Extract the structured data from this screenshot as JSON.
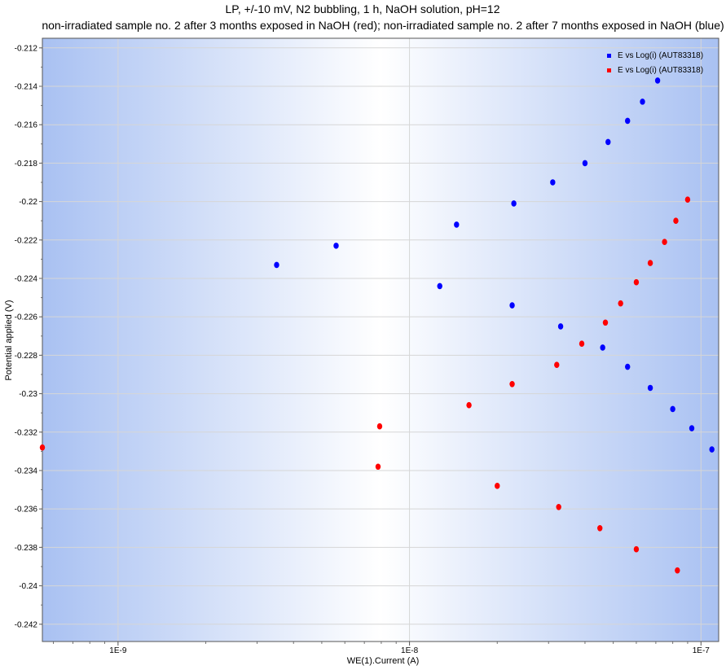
{
  "chart_data": {
    "type": "scatter",
    "title": "LP, +/-10 mV, N2 bubbling, 1 h, NaOH solution, pH=12",
    "subtitle": "non-irradiated sample no. 2 after 3 months exposed in NaOH (red); non-irradiated sample no. 2 after 7 months exposed in NaOH (blue)",
    "xlabel": "WE(1).Current (A)",
    "ylabel": "Potential applied (V)",
    "x_scale": "log",
    "xlim": [
      5.5e-10,
      1.15e-07
    ],
    "ylim": [
      -0.2429,
      -0.2115
    ],
    "x_ticks": [
      1e-09,
      1e-08,
      1e-07
    ],
    "x_tick_labels": [
      "1E-9",
      "1E-8",
      "1E-7"
    ],
    "y_ticks": [
      -0.212,
      -0.214,
      -0.216,
      -0.218,
      -0.22,
      -0.222,
      -0.224,
      -0.226,
      -0.228,
      -0.23,
      -0.232,
      -0.234,
      -0.236,
      -0.238,
      -0.24,
      -0.242
    ],
    "y_tick_labels": [
      "-0.212",
      "-0.214",
      "-0.216",
      "-0.218",
      "-0.22",
      "-0.222",
      "-0.224",
      "-0.226",
      "-0.228",
      "-0.23",
      "-0.232",
      "-0.234",
      "-0.236",
      "-0.238",
      "-0.24",
      "-0.242"
    ],
    "grid": true,
    "legend_position": "top-right",
    "series": [
      {
        "name": "E vs Log(i) (AUT83318)",
        "color": "#0000ff",
        "points": [
          [
            3.5e-09,
            -0.2233
          ],
          [
            5.6e-09,
            -0.2223
          ],
          [
            1.45e-08,
            -0.2212
          ],
          [
            2.28e-08,
            -0.2201
          ],
          [
            3.1e-08,
            -0.219
          ],
          [
            4e-08,
            -0.218
          ],
          [
            4.8e-08,
            -0.2169
          ],
          [
            5.6e-08,
            -0.2158
          ],
          [
            6.3e-08,
            -0.2148
          ],
          [
            7.1e-08,
            -0.2137
          ],
          [
            1.27e-08,
            -0.2244
          ],
          [
            2.25e-08,
            -0.2254
          ],
          [
            3.3e-08,
            -0.2265
          ],
          [
            4.6e-08,
            -0.2276
          ],
          [
            5.6e-08,
            -0.2286
          ],
          [
            6.7e-08,
            -0.2297
          ],
          [
            8e-08,
            -0.2308
          ],
          [
            9.3e-08,
            -0.2318
          ],
          [
            1.09e-07,
            -0.2329
          ]
        ]
      },
      {
        "name": "E vs Log(i) (AUT83318)",
        "color": "#ff0000",
        "points": [
          [
            5.5e-10,
            -0.2328
          ],
          [
            7.9e-09,
            -0.2317
          ],
          [
            1.6e-08,
            -0.2306
          ],
          [
            2.25e-08,
            -0.2295
          ],
          [
            3.2e-08,
            -0.2285
          ],
          [
            3.9e-08,
            -0.2274
          ],
          [
            4.7e-08,
            -0.2263
          ],
          [
            5.3e-08,
            -0.2253
          ],
          [
            6e-08,
            -0.2242
          ],
          [
            6.7e-08,
            -0.2232
          ],
          [
            7.5e-08,
            -0.2221
          ],
          [
            8.2e-08,
            -0.221
          ],
          [
            9e-08,
            -0.2199
          ],
          [
            7.8e-09,
            -0.2338
          ],
          [
            2e-08,
            -0.2348
          ],
          [
            3.25e-08,
            -0.2359
          ],
          [
            4.5e-08,
            -0.237
          ],
          [
            6e-08,
            -0.2381
          ],
          [
            8.3e-08,
            -0.2392
          ]
        ]
      }
    ]
  }
}
